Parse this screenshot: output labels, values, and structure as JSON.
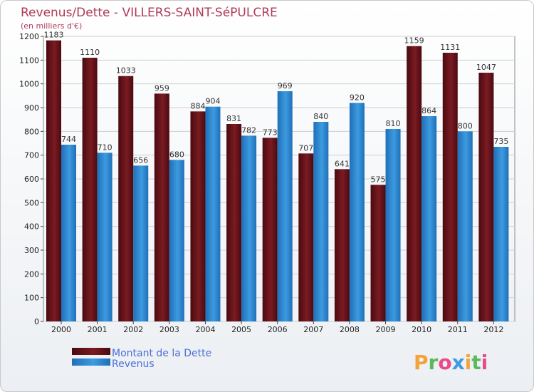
{
  "chart_data": {
    "type": "bar",
    "title": "Revenus/Dette - VILLERS-SAINT-SéPULCRE",
    "subtitle": "(en milliers d'€)",
    "xlabel": "",
    "ylabel": "",
    "ylim": [
      0,
      1200
    ],
    "yticks": [
      0,
      100,
      200,
      300,
      400,
      500,
      600,
      700,
      800,
      900,
      1000,
      1100,
      1200
    ],
    "grid": true,
    "categories": [
      "2000",
      "2001",
      "2002",
      "2003",
      "2004",
      "2005",
      "2006",
      "2007",
      "2008",
      "2009",
      "2010",
      "2011",
      "2012"
    ],
    "series": [
      {
        "name": "Montant de la Dette",
        "color": "#7a1b22",
        "values": [
          1183,
          1110,
          1033,
          959,
          884,
          831,
          773,
          707,
          641,
          575,
          1159,
          1131,
          1047
        ]
      },
      {
        "name": "Revenus",
        "color": "#3d9be0",
        "values": [
          744,
          710,
          656,
          680,
          904,
          782,
          969,
          840,
          920,
          810,
          864,
          800,
          735
        ]
      }
    ],
    "legend_position": "bottom-left"
  },
  "logo": {
    "letters": [
      "P",
      "r",
      "o",
      "x",
      "i",
      "t",
      "i"
    ],
    "colors": [
      "#f2a33a",
      "#5cb85c",
      "#e94b8a",
      "#3d9be0",
      "#f2a33a",
      "#5cb85c",
      "#e94b8a"
    ]
  }
}
